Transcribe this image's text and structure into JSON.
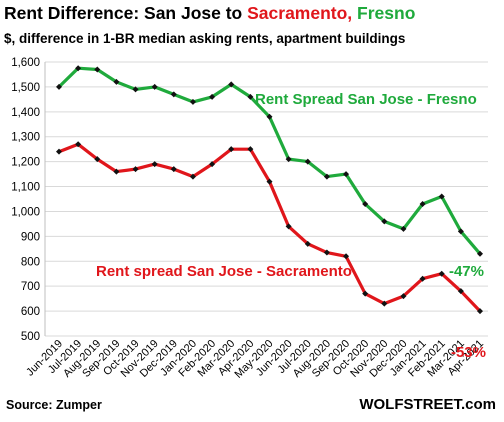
{
  "title": {
    "part1": "Rent Difference: San Jose to ",
    "part2": "Sacramento,",
    "part3": " Fresno",
    "part2_color": "#e0161b",
    "part3_color": "#1faa3c"
  },
  "subtitle": "$, difference in 1-BR median asking rents, apartment buildings",
  "source": "Source: Zumper",
  "brand": "WOLFSTREET.com",
  "chart_data": {
    "type": "line",
    "x": [
      "Jun-2019",
      "Jul-2019",
      "Aug-2019",
      "Sep-2019",
      "Oct-2019",
      "Nov-2019",
      "Dec-2019",
      "Jan-2020",
      "Feb-2020",
      "Mar-2020",
      "Apr-2020",
      "May-2020",
      "Jun-2020",
      "Jul-2020",
      "Aug-2020",
      "Sep-2020",
      "Oct-2020",
      "Nov-2020",
      "Dec-2020",
      "Jan-2021",
      "Feb-2021",
      "Mar-2021",
      "Apr-2021"
    ],
    "series": [
      {
        "name": "Rent Spread San Jose - Fresno",
        "color": "#1faa3c",
        "values": [
          1500,
          1575,
          1570,
          1520,
          1490,
          1500,
          1470,
          1440,
          1460,
          1510,
          1460,
          1380,
          1210,
          1200,
          1140,
          1150,
          1030,
          960,
          930,
          1030,
          1060,
          920,
          830
        ],
        "end_label": "-47%"
      },
      {
        "name": "Rent spread San Jose - Sacramento",
        "color": "#e0161b",
        "values": [
          1240,
          1270,
          1210,
          1160,
          1170,
          1190,
          1170,
          1140,
          1190,
          1250,
          1250,
          1120,
          940,
          870,
          835,
          820,
          670,
          630,
          660,
          730,
          750,
          680,
          600
        ],
        "end_label": "-53%"
      }
    ],
    "ylim": [
      500,
      1600
    ],
    "yticks": [
      500,
      600,
      700,
      800,
      900,
      "1,000",
      "1,100",
      "1,200",
      "1,300",
      "1,400",
      "1,500",
      "1,600"
    ],
    "grid": true,
    "legend": "inline labels"
  }
}
